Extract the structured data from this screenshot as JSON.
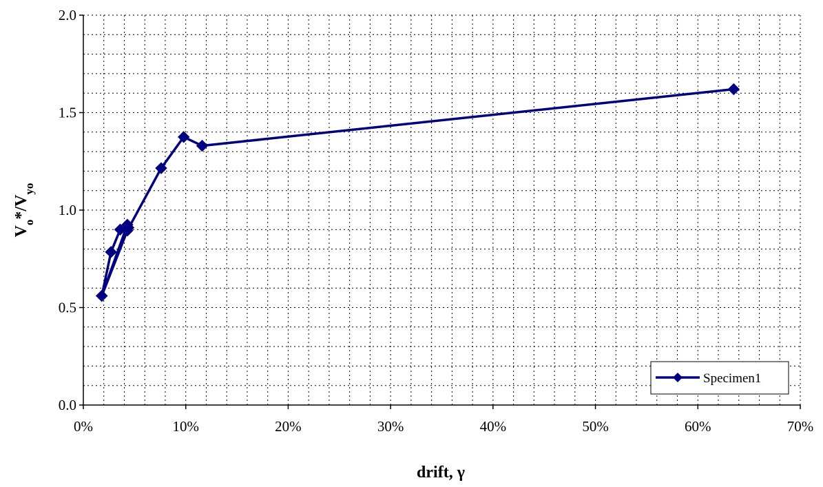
{
  "chart_data": {
    "type": "line",
    "title": "",
    "xlabel": "drift, γ",
    "ylabel": "V",
    "ylabel_parts": [
      {
        "text": "V",
        "sub": false
      },
      {
        "text": "o",
        "sub": true
      },
      {
        "text": "*/V",
        "sub": false
      },
      {
        "text": "yo",
        "sub": true
      }
    ],
    "xlim": [
      0,
      0.7
    ],
    "ylim": [
      0,
      2.0
    ],
    "x_ticks": [
      0,
      0.1,
      0.2,
      0.3,
      0.4,
      0.5,
      0.6,
      0.7
    ],
    "x_tick_labels": [
      "0%",
      "10%",
      "20%",
      "30%",
      "40%",
      "50%",
      "60%",
      "70%"
    ],
    "y_ticks": [
      0,
      0.5,
      1.0,
      1.5,
      2.0
    ],
    "y_tick_labels": [
      "0.0",
      "0.5",
      "1.0",
      "1.5",
      "2.0"
    ],
    "x_minor_step": 0.02,
    "y_minor_step": 0.1,
    "grid": true,
    "legend_position": "bottom-right",
    "series": [
      {
        "name": "Specimen1",
        "color": "#000080",
        "marker": "diamond",
        "x": [
          0.018,
          0.027,
          0.036,
          0.044,
          0.043,
          0.018,
          0.043,
          0.076,
          0.098,
          0.116,
          0.635
        ],
        "y": [
          0.56,
          0.785,
          0.9,
          0.91,
          0.925,
          0.56,
          0.895,
          1.215,
          1.375,
          1.33,
          1.62
        ]
      }
    ]
  }
}
